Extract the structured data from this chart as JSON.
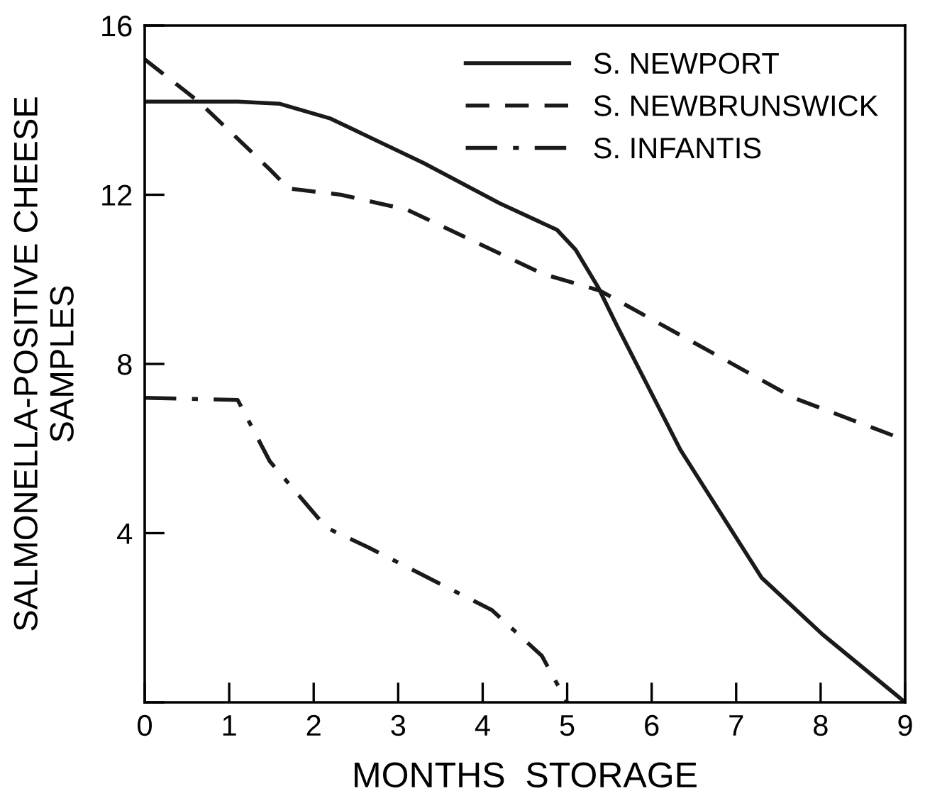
{
  "chart_data": {
    "type": "line",
    "xlabel": "MONTHS  STORAGE",
    "ylabel": "SALMONELLA-POSITIVE CHEESE\nSAMPLES",
    "xlim": [
      0,
      9
    ],
    "ylim": [
      0,
      16
    ],
    "xticks": [
      0,
      1,
      2,
      3,
      4,
      5,
      6,
      7,
      8,
      9
    ],
    "yticks": [
      {
        "value": 0,
        "label": null
      },
      4,
      8,
      12,
      16
    ],
    "grid": false,
    "legend": "top right",
    "marker": "none",
    "series": [
      {
        "name": "S. NEWPORT",
        "color": "#1a1a1a",
        "line_style": "solid",
        "x": [
          0,
          1.1,
          1.6,
          2.2,
          3.3,
          4.2,
          4.88,
          5.1,
          5.37,
          5.59,
          6.34,
          7.3,
          8.02,
          9
        ],
        "values": [
          14.2,
          14.2,
          14.15,
          13.8,
          12.75,
          11.8,
          11.17,
          10.7,
          9.8,
          8.9,
          5.97,
          2.95,
          1.61,
          0
        ]
      },
      {
        "name": "S. NEWBRUNSWICK",
        "color": "#1a1a1a",
        "line_style": "dashed",
        "x": [
          0,
          0.64,
          1.48,
          1.7,
          2.32,
          3.1,
          4.71,
          5.39,
          7.68,
          9
        ],
        "values": [
          15.2,
          14.2,
          12.6,
          12.15,
          12.0,
          11.65,
          10.13,
          9.73,
          7.2,
          6.2
        ]
      },
      {
        "name": "S. INFANTIS",
        "color": "#1a1a1a",
        "line_style": "dashdot",
        "x": [
          0,
          1.1,
          1.48,
          2.15,
          2.65,
          4.11,
          4.7,
          5
        ],
        "values": [
          7.2,
          7.15,
          5.7,
          4.13,
          3.66,
          2.18,
          1.1,
          0
        ]
      }
    ]
  }
}
